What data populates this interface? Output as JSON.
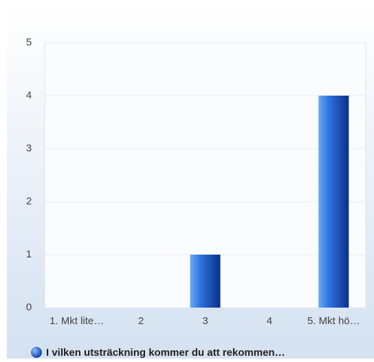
{
  "chart_data": {
    "type": "bar",
    "categories": [
      "1. Mkt lite…",
      "2",
      "3",
      "4",
      "5. Mkt hö…"
    ],
    "series": [
      {
        "name": "I vilken utsträckning kommer du att rekommen…",
        "color": "#1f5fd0",
        "values": [
          0,
          0,
          1,
          0,
          4
        ]
      }
    ],
    "ylim": [
      0,
      5
    ],
    "yticks": [
      0,
      1,
      2,
      3,
      4,
      5
    ],
    "grid": true,
    "legend": "bottom"
  }
}
